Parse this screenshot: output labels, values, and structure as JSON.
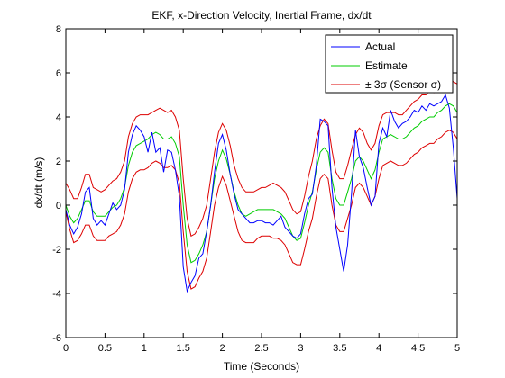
{
  "chart_data": {
    "type": "line",
    "title": "EKF, x-Direction Velocity, Inertial Frame, dx/dt",
    "xlabel": "Time (Seconds)",
    "ylabel": "dx/dt (m/s)",
    "xlim": [
      0,
      5
    ],
    "ylim": [
      -6,
      8
    ],
    "xticks": [
      0,
      0.5,
      1,
      1.5,
      2,
      2.5,
      3,
      3.5,
      4,
      4.5,
      5
    ],
    "xtick_labels": [
      "0",
      "0.5",
      "1",
      "1.5",
      "2",
      "2.5",
      "3",
      "3.5",
      "4",
      "4.5",
      "5"
    ],
    "yticks": [
      -6,
      -4,
      -2,
      0,
      2,
      4,
      6,
      8
    ],
    "ytick_labels": [
      "-6",
      "-4",
      "-2",
      "0",
      "2",
      "4",
      "6",
      "8"
    ],
    "grid": false,
    "legend_position": "top-right",
    "series": [
      {
        "name": "Actual",
        "color": "#0000ff",
        "x": [
          0,
          0.05,
          0.1,
          0.15,
          0.2,
          0.25,
          0.3,
          0.35,
          0.4,
          0.45,
          0.5,
          0.55,
          0.6,
          0.65,
          0.7,
          0.75,
          0.8,
          0.85,
          0.9,
          0.95,
          1.0,
          1.05,
          1.1,
          1.15,
          1.2,
          1.25,
          1.3,
          1.35,
          1.4,
          1.45,
          1.5,
          1.55,
          1.6,
          1.65,
          1.7,
          1.75,
          1.8,
          1.85,
          1.9,
          1.95,
          2.0,
          2.05,
          2.1,
          2.15,
          2.2,
          2.25,
          2.3,
          2.35,
          2.4,
          2.45,
          2.5,
          2.55,
          2.6,
          2.65,
          2.7,
          2.75,
          2.8,
          2.85,
          2.9,
          2.95,
          3.0,
          3.05,
          3.1,
          3.15,
          3.2,
          3.25,
          3.3,
          3.35,
          3.4,
          3.45,
          3.5,
          3.55,
          3.6,
          3.65,
          3.7,
          3.75,
          3.8,
          3.85,
          3.9,
          3.95,
          4.0,
          4.05,
          4.1,
          4.15,
          4.2,
          4.25,
          4.3,
          4.35,
          4.4,
          4.45,
          4.5,
          4.55,
          4.6,
          4.65,
          4.7,
          4.75,
          4.8,
          4.85,
          4.9,
          4.95,
          5.0
        ],
        "y": [
          -0.2,
          -0.9,
          -1.3,
          -1.0,
          -0.4,
          0.6,
          0.8,
          -0.6,
          -0.9,
          -0.7,
          -0.9,
          -0.4,
          0.1,
          -0.2,
          0.0,
          0.7,
          2.4,
          3.2,
          3.6,
          3.4,
          3.1,
          2.4,
          3.3,
          2.4,
          2.6,
          1.5,
          2.5,
          2.4,
          1.6,
          0.4,
          -2.8,
          -3.9,
          -3.5,
          -3.2,
          -2.4,
          -2.2,
          -1.2,
          0.0,
          1.5,
          2.8,
          3.2,
          2.5,
          1.4,
          0.5,
          -0.2,
          -0.4,
          -0.6,
          -0.8,
          -0.8,
          -0.7,
          -0.7,
          -0.8,
          -0.8,
          -0.9,
          -0.7,
          -0.5,
          -1.0,
          -1.2,
          -1.4,
          -1.5,
          -1.3,
          -0.4,
          0.3,
          0.5,
          1.8,
          3.9,
          3.8,
          3.6,
          0.8,
          -1.0,
          -2.0,
          -3.0,
          -1.8,
          0.5,
          3.4,
          2.2,
          1.7,
          0.8,
          0.0,
          0.4,
          2.8,
          3.5,
          3.1,
          4.3,
          3.8,
          3.5,
          3.7,
          3.8,
          4.0,
          4.3,
          4.2,
          4.5,
          4.3,
          4.6,
          4.5,
          4.6,
          4.7,
          5.0,
          4.4,
          2.6,
          0.3
        ]
      },
      {
        "name": "Estimate",
        "color": "#00cc00",
        "x": [
          0,
          0.05,
          0.1,
          0.15,
          0.2,
          0.25,
          0.3,
          0.35,
          0.4,
          0.45,
          0.5,
          0.55,
          0.6,
          0.65,
          0.7,
          0.75,
          0.8,
          0.85,
          0.9,
          0.95,
          1.0,
          1.05,
          1.1,
          1.15,
          1.2,
          1.25,
          1.3,
          1.35,
          1.4,
          1.45,
          1.5,
          1.55,
          1.6,
          1.65,
          1.7,
          1.75,
          1.8,
          1.85,
          1.9,
          1.95,
          2.0,
          2.05,
          2.1,
          2.15,
          2.2,
          2.25,
          2.3,
          2.35,
          2.4,
          2.45,
          2.5,
          2.55,
          2.6,
          2.65,
          2.7,
          2.75,
          2.8,
          2.85,
          2.9,
          2.95,
          3.0,
          3.05,
          3.1,
          3.15,
          3.2,
          3.25,
          3.3,
          3.35,
          3.4,
          3.45,
          3.5,
          3.55,
          3.6,
          3.65,
          3.7,
          3.75,
          3.8,
          3.85,
          3.9,
          3.95,
          4.0,
          4.05,
          4.1,
          4.15,
          4.2,
          4.25,
          4.3,
          4.35,
          4.4,
          4.45,
          4.5,
          4.55,
          4.6,
          4.65,
          4.7,
          4.75,
          4.8,
          4.85,
          4.9,
          4.95,
          5.0
        ],
        "y": [
          0.0,
          -0.5,
          -0.8,
          -0.6,
          -0.2,
          0.2,
          0.2,
          -0.3,
          -0.5,
          -0.5,
          -0.5,
          -0.3,
          -0.1,
          0.0,
          0.3,
          0.8,
          1.8,
          2.4,
          2.7,
          2.8,
          2.9,
          3.0,
          3.2,
          3.3,
          3.2,
          3.0,
          3.0,
          3.1,
          2.8,
          2.2,
          0.0,
          -1.8,
          -2.6,
          -2.5,
          -2.2,
          -1.8,
          -1.2,
          0.0,
          1.2,
          2.0,
          2.5,
          2.1,
          1.4,
          0.6,
          0.0,
          -0.4,
          -0.5,
          -0.4,
          -0.3,
          -0.2,
          -0.2,
          -0.2,
          -0.2,
          -0.2,
          -0.3,
          -0.4,
          -0.6,
          -1.0,
          -1.4,
          -1.6,
          -1.5,
          -0.8,
          0.0,
          0.6,
          1.6,
          2.4,
          2.6,
          2.4,
          1.2,
          0.3,
          0.0,
          0.0,
          0.6,
          1.2,
          2.0,
          2.2,
          2.0,
          1.6,
          1.2,
          1.6,
          2.4,
          3.0,
          3.1,
          3.2,
          3.1,
          3.0,
          3.0,
          3.1,
          3.3,
          3.5,
          3.6,
          3.8,
          3.9,
          4.0,
          4.0,
          4.2,
          4.3,
          4.5,
          4.6,
          4.5,
          4.2
        ]
      },
      {
        "name": "± 3σ (Sensor σ)",
        "color": "#dd0000",
        "x": [
          0,
          0.05,
          0.1,
          0.15,
          0.2,
          0.25,
          0.3,
          0.35,
          0.4,
          0.45,
          0.5,
          0.55,
          0.6,
          0.65,
          0.7,
          0.75,
          0.8,
          0.85,
          0.9,
          0.95,
          1.0,
          1.05,
          1.1,
          1.15,
          1.2,
          1.25,
          1.3,
          1.35,
          1.4,
          1.45,
          1.5,
          1.55,
          1.6,
          1.65,
          1.7,
          1.75,
          1.8,
          1.85,
          1.9,
          1.95,
          2.0,
          2.05,
          2.1,
          2.15,
          2.2,
          2.25,
          2.3,
          2.35,
          2.4,
          2.45,
          2.5,
          2.55,
          2.6,
          2.65,
          2.7,
          2.75,
          2.8,
          2.85,
          2.9,
          2.95,
          3.0,
          3.05,
          3.1,
          3.15,
          3.2,
          3.25,
          3.3,
          3.35,
          3.4,
          3.45,
          3.5,
          3.55,
          3.6,
          3.65,
          3.7,
          3.75,
          3.8,
          3.85,
          3.9,
          3.95,
          4.0,
          4.05,
          4.1,
          4.15,
          4.2,
          4.25,
          4.3,
          4.35,
          4.4,
          4.45,
          4.5,
          4.55,
          4.6,
          4.65,
          4.7,
          4.75,
          4.8,
          4.85,
          4.9,
          4.95,
          5.0
        ],
        "upper": [
          1.0,
          0.7,
          0.3,
          0.3,
          0.8,
          1.4,
          1.4,
          0.8,
          0.7,
          0.6,
          0.7,
          0.9,
          1.1,
          1.2,
          1.5,
          2.0,
          3.1,
          3.7,
          4.0,
          4.1,
          4.1,
          4.1,
          4.2,
          4.3,
          4.4,
          4.3,
          4.2,
          4.3,
          4.0,
          3.4,
          1.2,
          -0.6,
          -1.4,
          -1.3,
          -1.0,
          -0.6,
          0.0,
          1.2,
          2.4,
          3.3,
          3.7,
          3.4,
          2.7,
          1.8,
          1.2,
          0.8,
          0.6,
          0.6,
          0.6,
          0.7,
          0.8,
          0.8,
          0.9,
          1.0,
          0.9,
          0.8,
          0.6,
          0.2,
          -0.2,
          -0.4,
          -0.3,
          0.4,
          1.3,
          2.0,
          3.0,
          3.6,
          3.9,
          3.7,
          2.5,
          1.5,
          1.2,
          1.2,
          1.8,
          2.5,
          3.2,
          3.5,
          3.3,
          2.8,
          2.5,
          2.8,
          3.6,
          4.1,
          4.2,
          4.2,
          4.2,
          4.1,
          4.1,
          4.3,
          4.5,
          4.7,
          4.8,
          5.0,
          5.0,
          5.2,
          5.1,
          5.4,
          5.5,
          5.7,
          5.8,
          5.6,
          5.5
        ],
        "lower": [
          -0.3,
          -1.1,
          -1.7,
          -1.6,
          -1.3,
          -0.9,
          -0.9,
          -1.4,
          -1.6,
          -1.6,
          -1.6,
          -1.4,
          -1.3,
          -1.2,
          -0.9,
          -0.4,
          0.6,
          1.2,
          1.5,
          1.6,
          1.6,
          1.7,
          1.9,
          2.0,
          1.9,
          1.7,
          1.7,
          1.8,
          1.6,
          1.0,
          -1.2,
          -3.0,
          -3.8,
          -3.7,
          -3.3,
          -3.0,
          -2.4,
          -1.2,
          0.0,
          0.8,
          1.3,
          0.9,
          0.2,
          -0.5,
          -1.2,
          -1.6,
          -1.7,
          -1.7,
          -1.7,
          -1.5,
          -1.4,
          -1.4,
          -1.4,
          -1.5,
          -1.5,
          -1.6,
          -1.8,
          -2.2,
          -2.6,
          -2.7,
          -2.7,
          -2.0,
          -1.2,
          -0.6,
          0.4,
          1.2,
          1.4,
          1.2,
          0.0,
          -0.9,
          -1.2,
          -1.2,
          -0.6,
          0.0,
          0.8,
          1.0,
          0.8,
          0.4,
          0.0,
          0.4,
          1.2,
          1.8,
          1.9,
          2.0,
          1.9,
          1.8,
          1.8,
          1.9,
          2.1,
          2.3,
          2.4,
          2.6,
          2.7,
          2.8,
          2.8,
          3.0,
          3.1,
          3.3,
          3.4,
          3.3,
          3.0
        ]
      }
    ]
  }
}
